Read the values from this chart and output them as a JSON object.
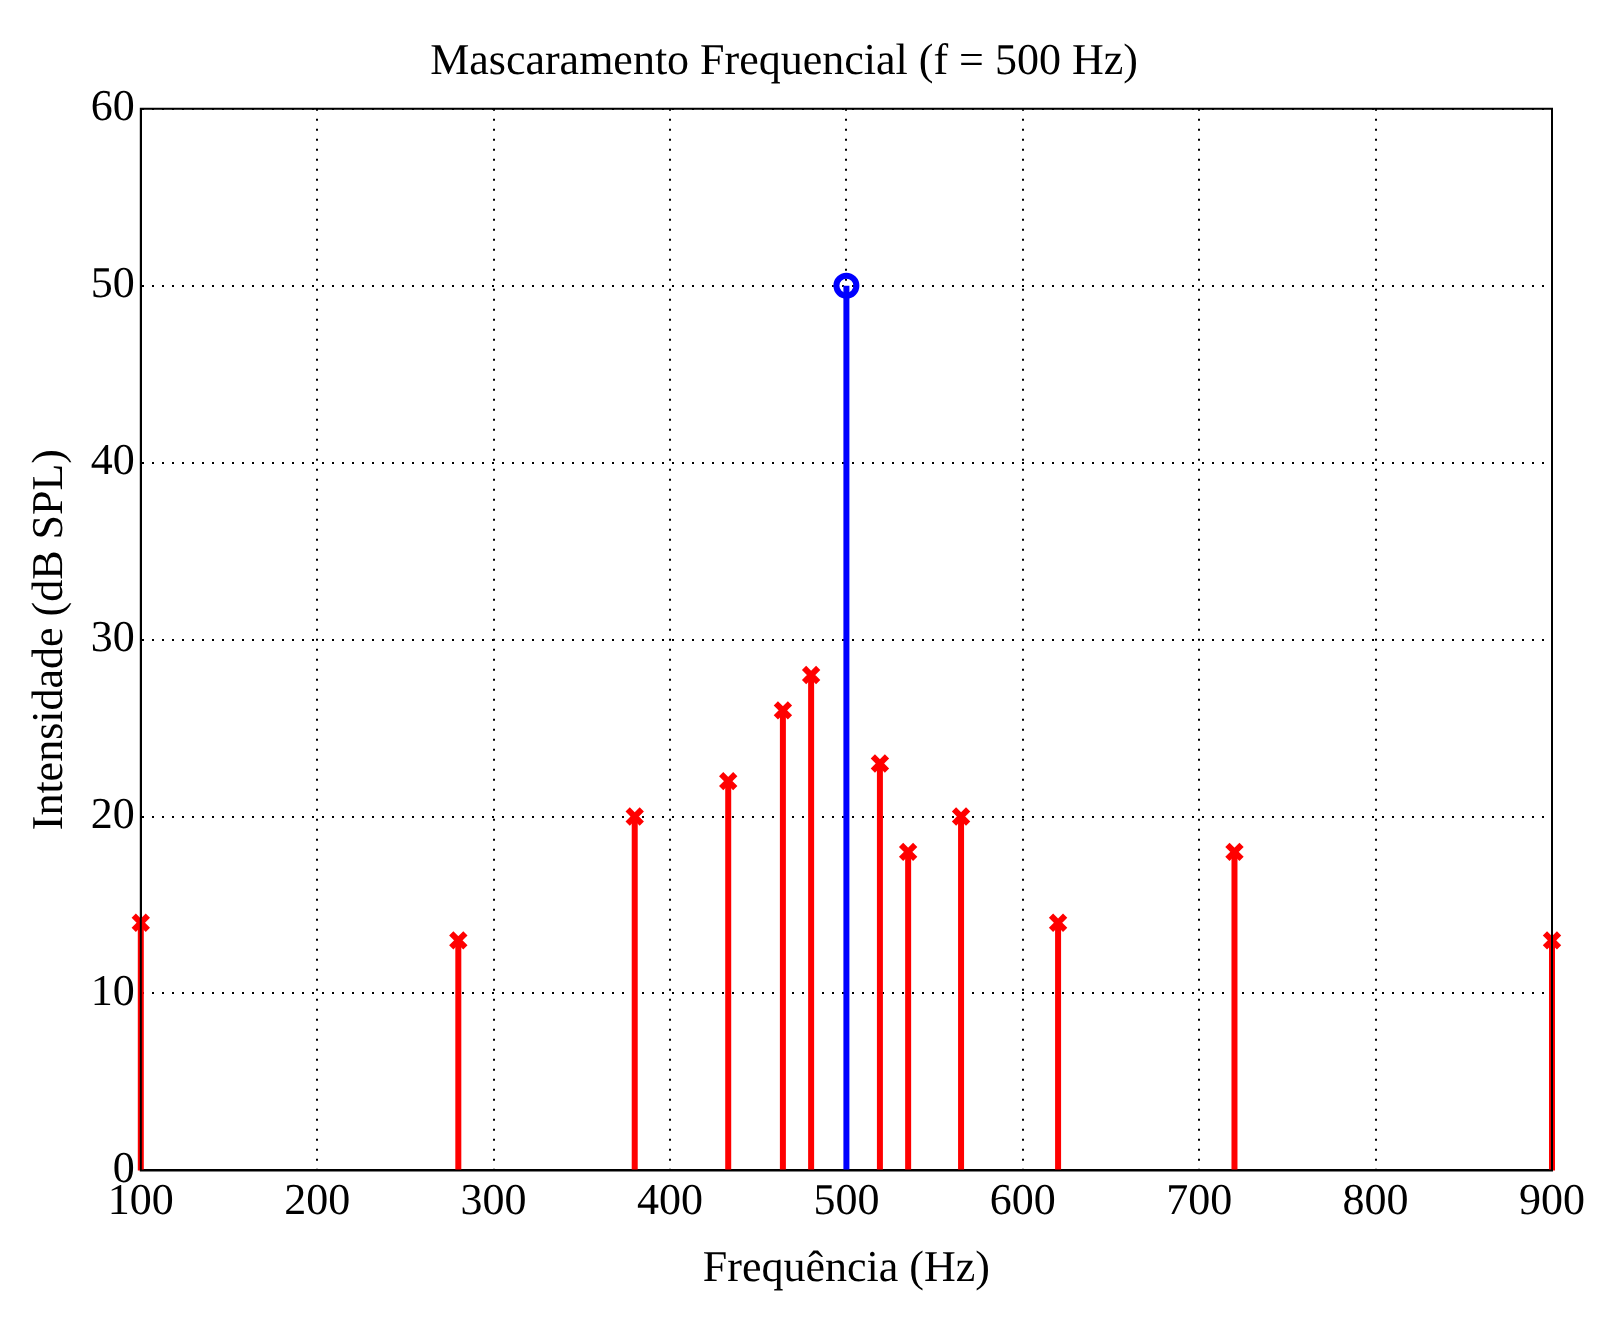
{
  "chart_data": {
    "type": "lollipop",
    "title": "Mascaramento Frequencial (f = 500 Hz)",
    "xlabel": "Frequência (Hz)",
    "ylabel": "Intensidade (dB SPL)",
    "series": [
      {
        "color": "#ff0000",
        "marker": "cross",
        "x": [
          100,
          280,
          380,
          433,
          464,
          480,
          519,
          535,
          565,
          620,
          720,
          900
        ],
        "values": [
          14,
          13,
          20,
          22,
          26,
          28,
          23,
          18,
          20,
          14,
          18,
          13
        ]
      },
      {
        "color": "#0000ff",
        "marker": "circle",
        "x": [
          500
        ],
        "values": [
          50
        ]
      }
    ],
    "xlim": [
      100,
      900
    ],
    "xticks": [
      100,
      200,
      300,
      400,
      500,
      600,
      700,
      800,
      900
    ],
    "ylim": [
      0,
      60
    ],
    "yticks": [
      0,
      10,
      20,
      30,
      40,
      50,
      60
    ],
    "grid": true,
    "legend": false
  }
}
